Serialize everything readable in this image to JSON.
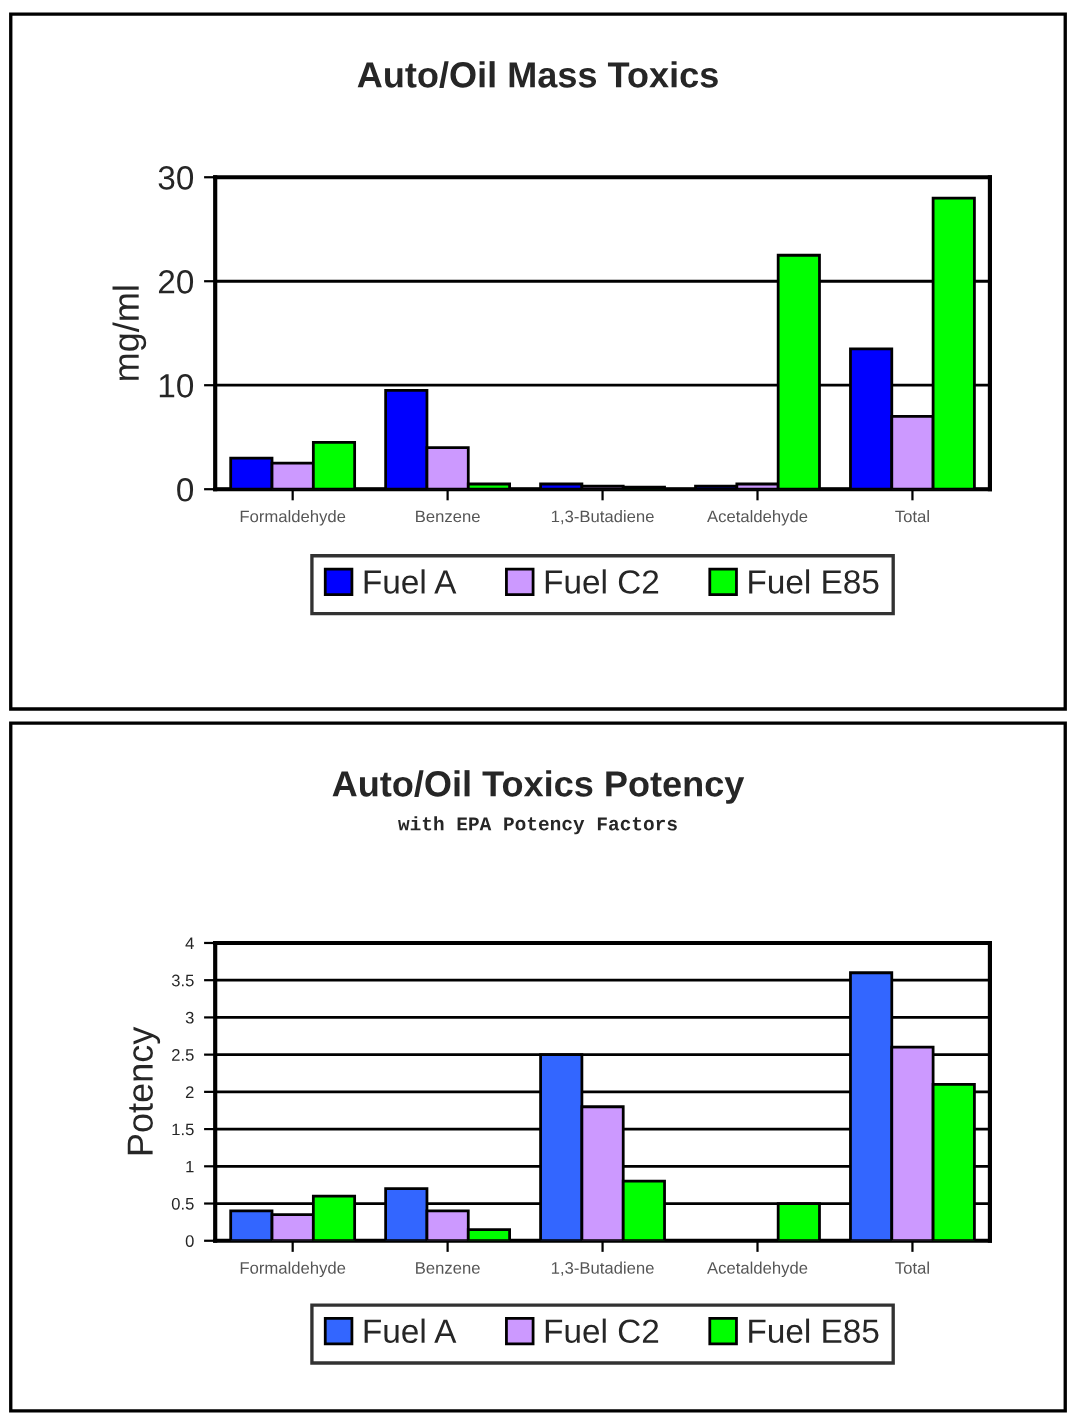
{
  "chart_data": [
    {
      "type": "bar",
      "title": "Auto/Oil Mass Toxics",
      "ylabel": "mg/ml",
      "categories": [
        "Formaldehyde",
        "Benzene",
        "1,3-Butadiene",
        "Acetaldehyde",
        "Total"
      ],
      "series": [
        {
          "name": "Fuel A",
          "color": "#0000ff",
          "values": [
            3,
            9.5,
            0.5,
            0.3,
            13.5
          ]
        },
        {
          "name": "Fuel C2",
          "color": "#cc99ff",
          "values": [
            2.5,
            4,
            0.3,
            0.5,
            7
          ]
        },
        {
          "name": "Fuel E85",
          "color": "#00ff00",
          "values": [
            4.5,
            0.5,
            0.2,
            22.5,
            28
          ]
        }
      ],
      "ylim": [
        0,
        30
      ],
      "yticks": [
        0,
        10,
        20,
        30
      ],
      "grid": "y",
      "legend": "bottom"
    },
    {
      "type": "bar",
      "title": "Auto/Oil Toxics Potency",
      "subtitle": "with EPA Potency Factors",
      "ylabel": "Potency",
      "categories": [
        "Formaldehyde",
        "Benzene",
        "1,3-Butadiene",
        "Acetaldehyde",
        "Total"
      ],
      "series": [
        {
          "name": "Fuel A",
          "color": "#3366ff",
          "values": [
            0.4,
            0.7,
            2.5,
            null,
            3.6
          ]
        },
        {
          "name": "Fuel C2",
          "color": "#cc99ff",
          "values": [
            0.35,
            0.4,
            1.8,
            null,
            2.6
          ]
        },
        {
          "name": "Fuel E85",
          "color": "#00ff00",
          "values": [
            0.6,
            0.15,
            0.8,
            0.5,
            2.1
          ]
        }
      ],
      "ylim": [
        0,
        4
      ],
      "yticks": [
        0,
        0.5,
        1,
        1.5,
        2,
        2.5,
        3,
        3.5,
        4
      ],
      "grid": "y",
      "legend": "bottom"
    }
  ]
}
